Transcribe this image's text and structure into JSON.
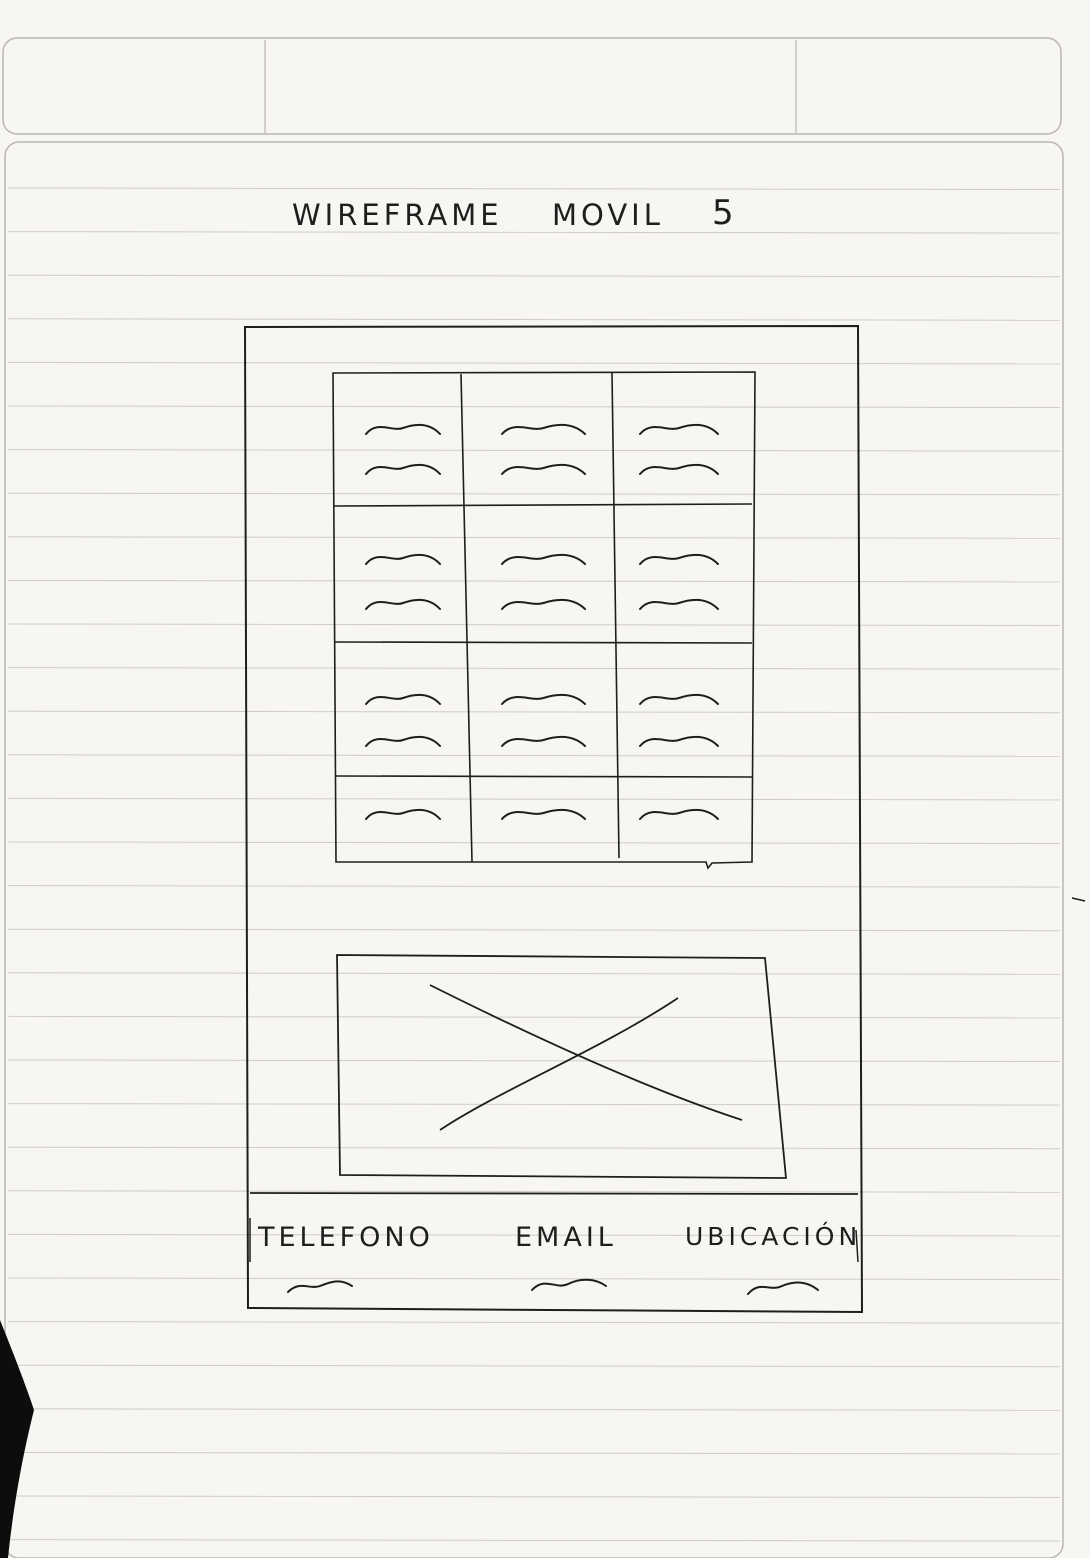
{
  "title": {
    "words": [
      "WIREFRAME",
      "MOVIL",
      "5"
    ]
  },
  "grid": {
    "rows": 4,
    "columns": 3
  },
  "image_placeholder": {
    "icon": "image-placeholder-x-icon"
  },
  "footer": {
    "labels": [
      "TELEFONO",
      "EMAIL",
      "UBICACIÓN"
    ]
  },
  "colors": {
    "paper": "#f7f6f3",
    "rule_lines": "#c9c6c2",
    "pencil": "#1e1e1e"
  }
}
